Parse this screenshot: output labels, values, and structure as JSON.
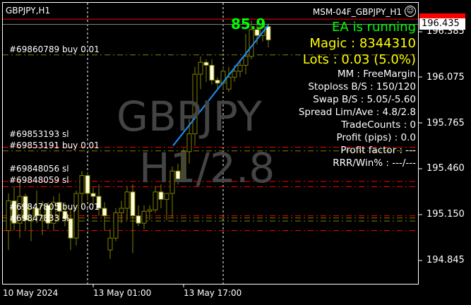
{
  "chart_header": {
    "symbol_timeframe": "GBPJPY,H1",
    "ea_name": "MSM-04F_GBPJPY_H1",
    "ea_icon": "smiley-icon"
  },
  "watermark": {
    "line1": "GBPJPY",
    "line2": "H1/2.8"
  },
  "ea_panel": [
    {
      "text": "EA is running",
      "color": "#00ff00",
      "size": "large"
    },
    {
      "text": "Magic : 8344310",
      "color": "#ffff00",
      "size": "large"
    },
    {
      "text": "Lots : 0.03 (5.0%)",
      "color": "#ffff00",
      "size": "large"
    },
    {
      "text": "MM : FreeMargin",
      "color": "#ffffff"
    },
    {
      "text": "Stoploss B/S : 150/120",
      "color": "#ffffff"
    },
    {
      "text": "Swap B/S : 5.05/-5.60",
      "color": "#ffffff"
    },
    {
      "text": "Spread Lim/Ave : 4.8/2.8",
      "color": "#ffffff"
    },
    {
      "text": "TradeCounts : 0",
      "color": "#ffffff"
    },
    {
      "text": "Profit (pips) : 0.0",
      "color": "#ffffff"
    },
    {
      "text": "Profit factor : ---",
      "color": "#ffffff"
    },
    {
      "text": "RRR/Win% : ---/---",
      "color": "#ffffff"
    }
  ],
  "trend_value": "85.9",
  "price_axis": {
    "labels": [
      "196.385",
      "196.075",
      "195.765",
      "195.460",
      "195.150",
      "194.845"
    ],
    "bid": "196.435"
  },
  "time_axis": {
    "labels": [
      "10 May 2024",
      "13 May 01:00",
      "13 May 17:00"
    ]
  },
  "order_labels": [
    {
      "text": "#69860789 buy 0.01",
      "price": 196.23
    },
    {
      "text": "#69853193 sl",
      "price": 195.66
    },
    {
      "text": "#69853191 buy 0.01",
      "price": 195.61
    },
    {
      "text": "#69848056 sl",
      "price": 195.43
    },
    {
      "text": "#69848059 sl",
      "price": 195.39
    },
    {
      "text": "#69847805 buy 0.01",
      "price": 195.17
    },
    {
      "text": "#69847833 sl",
      "price": 195.1
    }
  ],
  "chart_data": {
    "type": "candlestick",
    "symbol": "GBPJPY",
    "timeframe": "H1",
    "ylim": [
      194.78,
      196.52
    ],
    "ohlc": [
      [
        195.05,
        195.3,
        194.92,
        195.25
      ],
      [
        195.25,
        195.35,
        195.05,
        195.1
      ],
      [
        195.1,
        195.4,
        195.0,
        195.28
      ],
      [
        195.28,
        195.3,
        195.05,
        195.12
      ],
      [
        195.12,
        195.22,
        194.98,
        195.2
      ],
      [
        195.2,
        195.32,
        195.1,
        195.15
      ],
      [
        195.15,
        195.25,
        195.02,
        195.22
      ],
      [
        195.22,
        195.24,
        195.06,
        195.1
      ],
      [
        195.1,
        195.28,
        195.05,
        195.24
      ],
      [
        195.24,
        195.3,
        195.12,
        195.18
      ],
      [
        195.18,
        195.24,
        195.08,
        195.13
      ],
      [
        195.13,
        195.2,
        194.92,
        195.0
      ],
      [
        195.0,
        195.32,
        194.95,
        195.3
      ],
      [
        195.3,
        195.45,
        195.2,
        195.42
      ],
      [
        195.42,
        195.44,
        195.25,
        195.3
      ],
      [
        195.3,
        195.34,
        195.22,
        195.28
      ],
      [
        195.28,
        195.36,
        195.15,
        195.2
      ],
      [
        195.2,
        195.24,
        195.05,
        195.15
      ],
      [
        194.92,
        195.06,
        194.86,
        195.0
      ],
      [
        195.0,
        195.2,
        194.98,
        195.17
      ],
      [
        195.17,
        195.25,
        195.1,
        195.2
      ],
      [
        195.2,
        195.35,
        195.12,
        195.31
      ],
      [
        195.31,
        195.36,
        194.9,
        195.15
      ],
      [
        195.15,
        195.22,
        195.08,
        195.1
      ],
      [
        195.1,
        195.22,
        195.06,
        195.18
      ],
      [
        195.18,
        195.22,
        195.12,
        195.19
      ],
      [
        195.19,
        195.35,
        195.17,
        195.31
      ],
      [
        195.31,
        195.36,
        195.2,
        195.26
      ],
      [
        195.26,
        195.3,
        195.12,
        195.3
      ],
      [
        195.3,
        195.48,
        195.14,
        195.45
      ],
      [
        195.45,
        195.5,
        195.36,
        195.39
      ],
      [
        195.39,
        195.6,
        195.4,
        195.58
      ],
      [
        195.58,
        195.8,
        195.5,
        195.7
      ],
      [
        195.7,
        196.15,
        195.62,
        196.1
      ],
      [
        196.1,
        196.22,
        196.0,
        196.18
      ],
      [
        196.18,
        196.2,
        196.05,
        196.16
      ],
      [
        196.16,
        196.2,
        196.03,
        196.06
      ],
      [
        196.06,
        196.08,
        196.0,
        196.04
      ],
      [
        196.04,
        196.15,
        196.0,
        196.12
      ],
      [
        196.0,
        196.15,
        195.98,
        196.08
      ],
      [
        196.08,
        196.16,
        196.05,
        196.12
      ],
      [
        196.12,
        196.2,
        196.08,
        196.16
      ],
      [
        196.16,
        196.37,
        196.1,
        196.22
      ],
      [
        196.22,
        196.46,
        196.2,
        196.4
      ],
      [
        196.4,
        196.44,
        196.3,
        196.36
      ],
      [
        196.36,
        196.46,
        196.32,
        196.42
      ],
      [
        196.42,
        196.44,
        196.28,
        196.33
      ]
    ],
    "trendline": {
      "from_price": 195.62,
      "to_price": 196.43
    },
    "price_lines": [
      {
        "kind": "ask",
        "price": 196.47,
        "color": "#ff0000"
      },
      {
        "kind": "bid",
        "price": 196.435,
        "color": "#808080"
      },
      {
        "kind": "order",
        "price": 196.23,
        "color": "#808000"
      },
      {
        "kind": "sl",
        "price": 195.61,
        "color": "#ff0000"
      },
      {
        "kind": "order",
        "price": 195.585,
        "color": "#808000"
      },
      {
        "kind": "sl",
        "price": 195.38,
        "color": "#ff0000"
      },
      {
        "kind": "sl",
        "price": 195.345,
        "color": "#ff0000"
      },
      {
        "kind": "sl",
        "price": 195.15,
        "color": "#ff0000"
      },
      {
        "kind": "order",
        "price": 195.135,
        "color": "#808000"
      },
      {
        "kind": "order",
        "price": 195.115,
        "color": "#808000"
      },
      {
        "kind": "sl",
        "price": 195.05,
        "color": "#ff0000"
      }
    ]
  }
}
